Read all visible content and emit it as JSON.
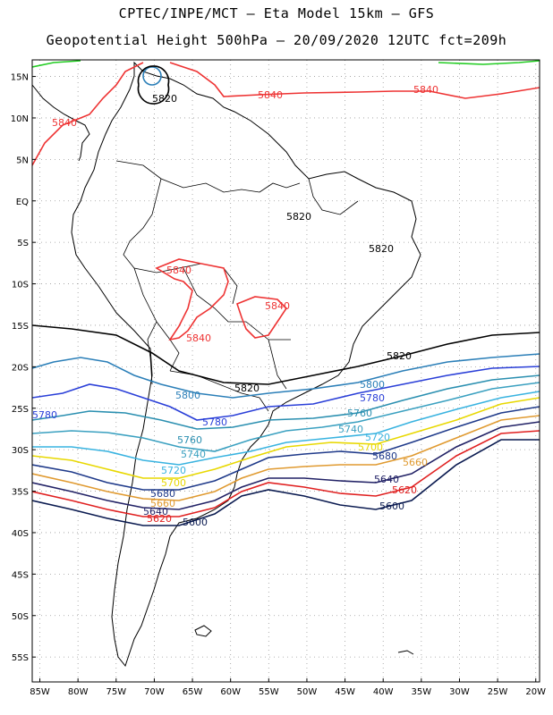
{
  "title": {
    "line1": "CPTEC/INPE/MCT –  Eta Model 15km – GFS",
    "line2": "Geopotential Height 500hPa – 20/09/2020 12UTC fct=209h"
  },
  "map": {
    "lon_range": [
      -86,
      -19.5
    ],
    "lat_range": [
      -58,
      17
    ],
    "lon_ticks": [
      "85W",
      "80W",
      "75W",
      "70W",
      "65W",
      "60W",
      "55W",
      "50W",
      "45W",
      "40W",
      "35W",
      "30W",
      "25W",
      "20W"
    ],
    "lon_values": [
      -85,
      -80,
      -75,
      -70,
      -65,
      -60,
      -55,
      -50,
      -45,
      -40,
      -35,
      -30,
      -25,
      -20
    ],
    "lat_ticks": [
      "15N",
      "10N",
      "5N",
      "EQ",
      "5S",
      "10S",
      "15S",
      "20S",
      "25S",
      "30S",
      "35S",
      "40S",
      "45S",
      "50S",
      "55S"
    ],
    "lat_values": [
      15,
      10,
      5,
      0,
      -5,
      -10,
      -15,
      -20,
      -25,
      -30,
      -35,
      -40,
      -45,
      -50,
      -55
    ]
  },
  "contours": [
    {
      "level": "5840",
      "color": "#ee3333",
      "labels": [
        "5840",
        "5840",
        "5840",
        "5840",
        "5840",
        "5840"
      ]
    },
    {
      "level": "5820",
      "color": "#000000",
      "labels": [
        "5820",
        "5820",
        "5820",
        "5820",
        "5820"
      ]
    },
    {
      "level": "5800",
      "color": "#2b7fb8",
      "labels": [
        "5800",
        "5800"
      ]
    },
    {
      "level": "5780",
      "color": "#2a3fd8",
      "labels": [
        "5780",
        "5780",
        "5780"
      ]
    },
    {
      "level": "5760",
      "color": "#2a8fb0",
      "labels": [
        "5760",
        "5760"
      ]
    },
    {
      "level": "5740",
      "color": "#3aa0c0",
      "labels": [
        "5740",
        "5740"
      ]
    },
    {
      "level": "5720",
      "color": "#39b3e0",
      "labels": [
        "5720",
        "5720"
      ]
    },
    {
      "level": "5700",
      "color": "#e8d800",
      "labels": [
        "5700",
        "5700"
      ]
    },
    {
      "level": "5680",
      "color": "#1f3a8a",
      "labels": [
        "5680",
        "5680"
      ]
    },
    {
      "level": "5660",
      "color": "#e09a30",
      "labels": [
        "5660",
        "5660"
      ]
    },
    {
      "level": "5640",
      "color": "#222266",
      "labels": [
        "5640",
        "5640"
      ]
    },
    {
      "level": "5620",
      "color": "#e02020",
      "labels": [
        "5620",
        "5620"
      ]
    },
    {
      "level": "5600",
      "color": "#0a1a50",
      "labels": [
        "5600",
        "5600"
      ]
    },
    {
      "level": "5860",
      "color": "#22cc22",
      "labels": []
    }
  ]
}
